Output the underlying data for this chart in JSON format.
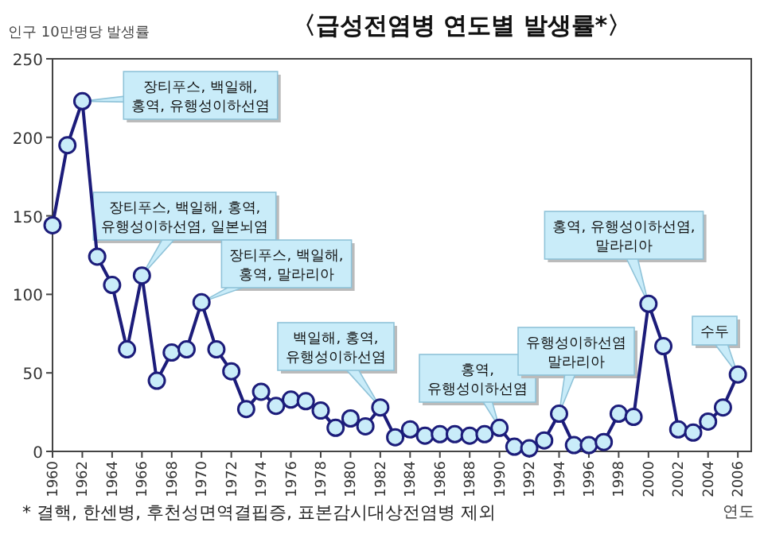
{
  "chart_data": {
    "type": "line",
    "title": "〈급성전염병 연도별 발생률*〉",
    "ylabel": "인구 10만명당 발생률",
    "xlabel": "연도",
    "x": [
      1960,
      1961,
      1962,
      1963,
      1964,
      1965,
      1966,
      1967,
      1968,
      1969,
      1970,
      1971,
      1972,
      1973,
      1974,
      1975,
      1976,
      1977,
      1978,
      1979,
      1980,
      1981,
      1982,
      1983,
      1984,
      1985,
      1986,
      1987,
      1988,
      1989,
      1990,
      1991,
      1992,
      1993,
      1994,
      1995,
      1996,
      1997,
      1998,
      1999,
      2000,
      2001,
      2002,
      2003,
      2004,
      2005,
      2006
    ],
    "values": [
      144,
      195,
      223,
      124,
      106,
      65,
      112,
      45,
      63,
      65,
      95,
      65,
      51,
      27,
      38,
      29,
      33,
      32,
      26,
      15,
      21,
      16,
      28,
      9,
      14,
      10,
      11,
      11,
      10,
      11,
      15,
      3,
      2,
      7,
      24,
      4,
      4,
      6,
      24,
      22,
      94,
      67,
      14,
      12,
      19,
      28,
      49
    ],
    "color": "#1c1c7a",
    "marker": "circle",
    "line_style": "solid",
    "xlim": [
      1960,
      2006.9
    ],
    "ylim": [
      0,
      250
    ],
    "xticks": [
      1960,
      1962,
      1964,
      1966,
      1968,
      1970,
      1972,
      1974,
      1976,
      1978,
      1980,
      1982,
      1984,
      1986,
      1988,
      1990,
      1992,
      1994,
      1996,
      1998,
      2000,
      2002,
      2004,
      2006
    ],
    "yticks": [
      0,
      50,
      100,
      150,
      200,
      250
    ],
    "annotations": [
      {
        "text": "장티푸스, 백일해,\n홍역, 유행성이하선염",
        "x": 1962,
        "y": 223
      },
      {
        "text": "장티푸스, 백일해, 홍역,\n유행성이하선염, 일본뇌염",
        "x": 1966,
        "y": 112
      },
      {
        "text": "장티푸스, 백일해,\n홍역, 말라리아",
        "x": 1970,
        "y": 95
      },
      {
        "text": "백일해, 홍역,\n유행성이하선염",
        "x": 1982,
        "y": 28
      },
      {
        "text": "홍역,\n유행성이하선염",
        "x": 1990,
        "y": 15
      },
      {
        "text": "유행성이하선염\n말라리아",
        "x": 1994,
        "y": 24
      },
      {
        "text": "홍역, 유행성이하선염,\n말라리아",
        "x": 2000,
        "y": 94
      },
      {
        "text": "수두",
        "x": 2006,
        "y": 49
      },
      "* 결핵, 한센병, 후천성면역결핍증, 표본감시대상전염병 제외"
    ]
  }
}
